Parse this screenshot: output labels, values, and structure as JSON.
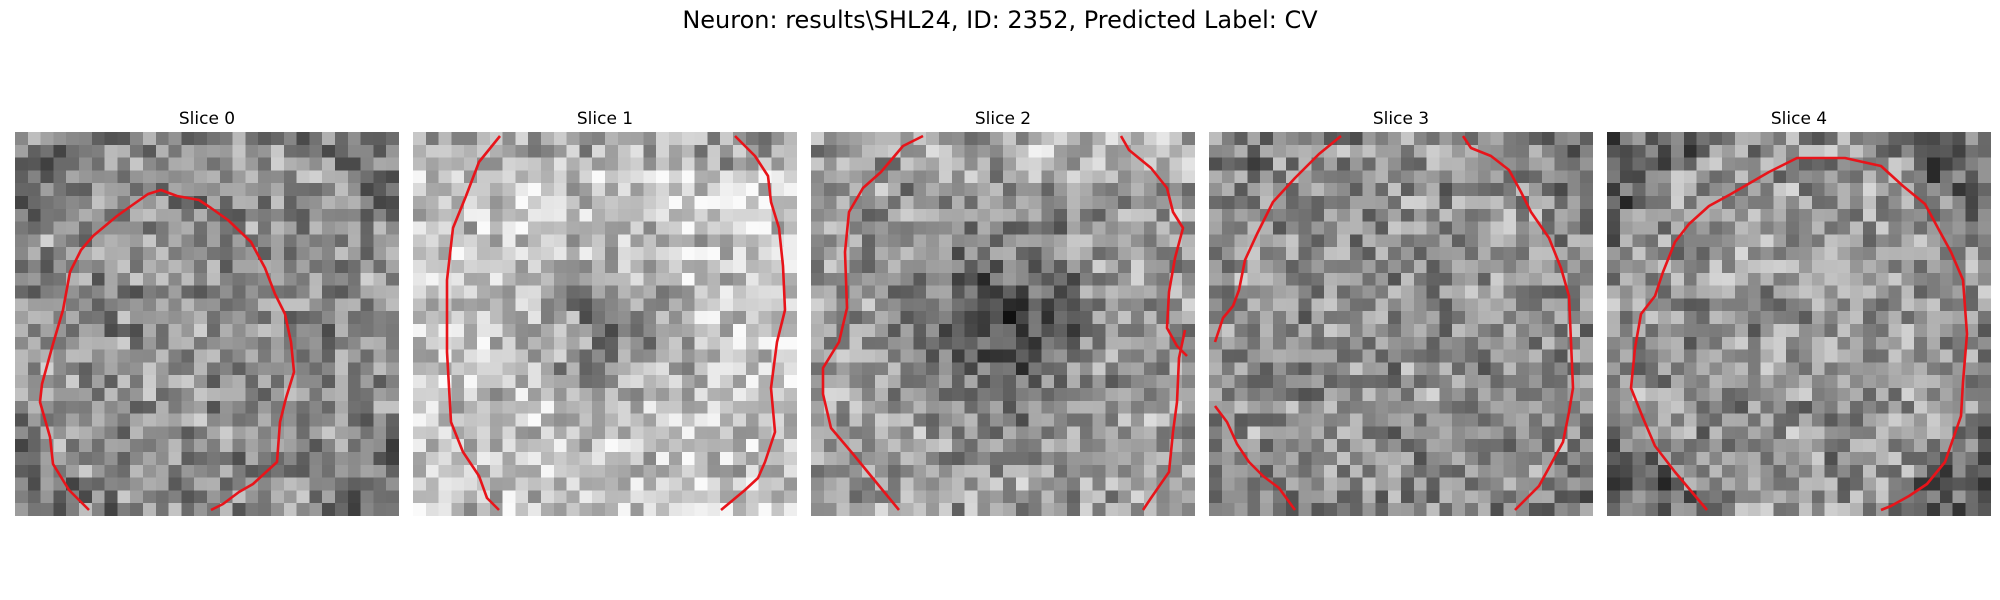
{
  "figure": {
    "title": "Neuron: results\\SHL24, ID: 2352, Predicted Label: CV",
    "contour_color": "#e8141a",
    "colormap": "gray"
  },
  "panels": [
    {
      "title": "Slice 0",
      "style": "uniform"
    },
    {
      "title": "Slice 1",
      "style": "bright-ring"
    },
    {
      "title": "Slice 2",
      "style": "dark-center"
    },
    {
      "title": "Slice 3",
      "style": "uniform"
    },
    {
      "title": "Slice 4",
      "style": "uniform-dark-corners"
    }
  ]
}
